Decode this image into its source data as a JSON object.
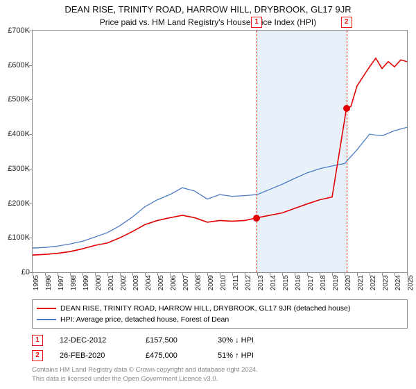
{
  "title_line1": "DEAN RISE, TRINITY ROAD, HARROW HILL, DRYBROOK, GL17 9JR",
  "title_line2": "Price paid vs. HM Land Registry's House Price Index (HPI)",
  "chart": {
    "type": "line",
    "background_color": "#ffffff",
    "shaded_band_color": "#e8f0fa",
    "border_color": "#888888",
    "ylim": [
      0,
      700000
    ],
    "yticks": [
      0,
      100000,
      200000,
      300000,
      400000,
      500000,
      600000,
      700000
    ],
    "ytick_labels": [
      "£0",
      "£100K",
      "£200K",
      "£300K",
      "£400K",
      "£500K",
      "£600K",
      "£700K"
    ],
    "xlim": [
      1995,
      2025
    ],
    "xticks": [
      1995,
      1996,
      1997,
      1998,
      1999,
      2000,
      2001,
      2002,
      2003,
      2004,
      2005,
      2006,
      2007,
      2008,
      2009,
      2010,
      2011,
      2012,
      2013,
      2014,
      2015,
      2016,
      2017,
      2018,
      2019,
      2020,
      2021,
      2022,
      2023,
      2024,
      2025
    ],
    "series": {
      "property": {
        "label": "DEAN RISE, TRINITY ROAD, HARROW HILL, DRYBROOK, GL17 9JR (detached house)",
        "color": "#e10000",
        "line_width": 1.6,
        "data": [
          [
            1995,
            50000
          ],
          [
            1996,
            52000
          ],
          [
            1997,
            55000
          ],
          [
            1998,
            60000
          ],
          [
            1999,
            68000
          ],
          [
            2000,
            78000
          ],
          [
            2001,
            85000
          ],
          [
            2002,
            100000
          ],
          [
            2003,
            118000
          ],
          [
            2004,
            138000
          ],
          [
            2005,
            150000
          ],
          [
            2006,
            158000
          ],
          [
            2007,
            165000
          ],
          [
            2008,
            158000
          ],
          [
            2009,
            145000
          ],
          [
            2010,
            150000
          ],
          [
            2011,
            148000
          ],
          [
            2012,
            150000
          ],
          [
            2012.95,
            157500
          ],
          [
            2013,
            158000
          ],
          [
            2014,
            165000
          ],
          [
            2015,
            172000
          ],
          [
            2016,
            185000
          ],
          [
            2017,
            198000
          ],
          [
            2018,
            210000
          ],
          [
            2019,
            218000
          ],
          [
            2020.15,
            475000
          ],
          [
            2020.5,
            480000
          ],
          [
            2021,
            540000
          ],
          [
            2022,
            595000
          ],
          [
            2022.5,
            620000
          ],
          [
            2023,
            590000
          ],
          [
            2023.5,
            610000
          ],
          [
            2024,
            595000
          ],
          [
            2024.5,
            615000
          ],
          [
            2025,
            610000
          ]
        ]
      },
      "hpi": {
        "label": "HPI: Average price, detached house, Forest of Dean",
        "color": "#4a7bc4",
        "line_width": 1.3,
        "data": [
          [
            1995,
            70000
          ],
          [
            1996,
            72000
          ],
          [
            1997,
            76000
          ],
          [
            1998,
            82000
          ],
          [
            1999,
            90000
          ],
          [
            2000,
            102000
          ],
          [
            2001,
            115000
          ],
          [
            2002,
            135000
          ],
          [
            2003,
            160000
          ],
          [
            2004,
            190000
          ],
          [
            2005,
            210000
          ],
          [
            2006,
            225000
          ],
          [
            2007,
            245000
          ],
          [
            2008,
            235000
          ],
          [
            2009,
            212000
          ],
          [
            2010,
            225000
          ],
          [
            2011,
            220000
          ],
          [
            2012,
            222000
          ],
          [
            2013,
            225000
          ],
          [
            2014,
            240000
          ],
          [
            2015,
            255000
          ],
          [
            2016,
            272000
          ],
          [
            2017,
            288000
          ],
          [
            2018,
            300000
          ],
          [
            2019,
            308000
          ],
          [
            2020,
            315000
          ],
          [
            2021,
            355000
          ],
          [
            2022,
            400000
          ],
          [
            2023,
            395000
          ],
          [
            2024,
            410000
          ],
          [
            2025,
            420000
          ]
        ]
      }
    },
    "shaded_band": {
      "x_start": 2012.95,
      "x_end": 2020.15
    },
    "markers": [
      {
        "label": "1",
        "x": 2012.95,
        "dot_y": 157500,
        "dot_color": "#e10000"
      },
      {
        "label": "2",
        "x": 2020.15,
        "dot_y": 475000,
        "dot_color": "#e10000"
      }
    ]
  },
  "legend": {
    "items": [
      {
        "color": "#e10000",
        "text": "DEAN RISE, TRINITY ROAD, HARROW HILL, DRYBROOK, GL17 9JR (detached house)"
      },
      {
        "color": "#4a7bc4",
        "text": "HPI: Average price, detached house, Forest of Dean"
      }
    ]
  },
  "sales": [
    {
      "n": "1",
      "date": "12-DEC-2012",
      "price": "£157,500",
      "delta": "30% ↓ HPI"
    },
    {
      "n": "2",
      "date": "26-FEB-2020",
      "price": "£475,000",
      "delta": "51% ↑ HPI"
    }
  ],
  "footer_line1": "Contains HM Land Registry data © Crown copyright and database right 2024.",
  "footer_line2": "This data is licensed under the Open Government Licence v3.0."
}
